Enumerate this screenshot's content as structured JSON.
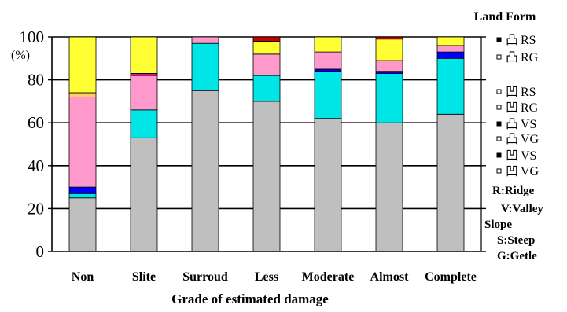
{
  "chart_data": {
    "type": "bar",
    "stacked": true,
    "title": "",
    "xlabel": "Grade of estimated damage",
    "ylabel": "(%)",
    "ylim": [
      0,
      100
    ],
    "yticks": [
      "0",
      "20",
      "40",
      "60",
      "80",
      "100"
    ],
    "categories": [
      "Non",
      "Slite",
      "Surroud",
      "Less",
      "Moderate",
      "Almost",
      "Complete"
    ],
    "legend_title": "Land Form",
    "series": [
      {
        "name": "VG",
        "color": "#bfbfbf",
        "values": [
          25,
          53,
          75,
          70,
          62,
          60,
          64
        ]
      },
      {
        "name": "VS",
        "color": "#000000",
        "values": [
          0,
          0,
          0,
          0,
          0,
          0,
          0
        ]
      },
      {
        "name": "RG",
        "color": "#00e5e5",
        "values": [
          2,
          13,
          22,
          12,
          22,
          23,
          26
        ]
      },
      {
        "name": "RS",
        "color": "#0000ff",
        "values": [
          3,
          0,
          0,
          0,
          1,
          1,
          3
        ]
      },
      {
        "name": "RG",
        "color": "#ff99cc",
        "values": [
          42,
          16,
          3,
          10,
          8,
          5,
          3
        ]
      },
      {
        "name": "RS",
        "color": "#ff0099",
        "values": [
          0,
          1,
          0,
          0,
          0,
          0,
          0
        ]
      },
      {
        "name": "RG",
        "color": "#ffcc66",
        "values": [
          2,
          0,
          0,
          0,
          0,
          0,
          0
        ]
      },
      {
        "name": "RS",
        "color": "#ffff33",
        "values": [
          26,
          17,
          0,
          6,
          7,
          10,
          4
        ]
      },
      {
        "name": "",
        "color": "#cc0000",
        "values": [
          0,
          0,
          0,
          2,
          0,
          1,
          0
        ]
      }
    ],
    "legend_entries": [
      {
        "glyph": "凸",
        "code": "RS",
        "square": "filled"
      },
      {
        "glyph": "凸",
        "code": "RG",
        "square": "open"
      },
      {
        "glyph": "凹",
        "code": "RS",
        "square": "open"
      },
      {
        "glyph": "凹",
        "code": "RG",
        "square": "open"
      },
      {
        "glyph": "凸",
        "code": "VS",
        "square": "filled"
      },
      {
        "glyph": "凸",
        "code": "VG",
        "square": "open"
      },
      {
        "glyph": "凹",
        "code": "VS",
        "square": "filled"
      },
      {
        "glyph": "凹",
        "code": "VG",
        "square": "open"
      }
    ],
    "notes": [
      "R:Ridge",
      "V:Valley",
      "Slope",
      "S:Steep",
      "G:Getle"
    ]
  }
}
